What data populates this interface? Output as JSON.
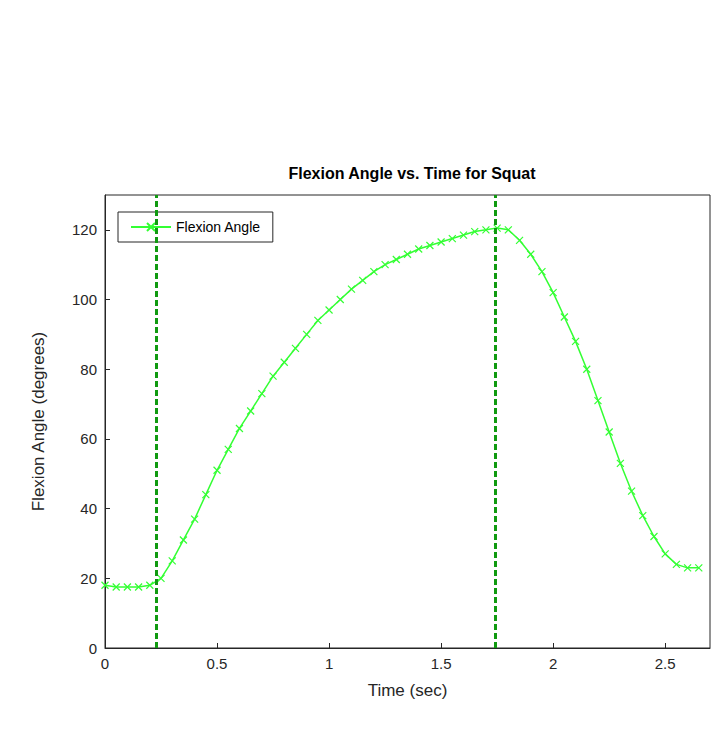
{
  "chart_data": {
    "type": "line",
    "title": "Flexion Angle vs. Time for Squat",
    "x_label": "Time (sec)",
    "y_label": "Flexion Angle (degrees)",
    "x": [
      0,
      0.05,
      0.1,
      0.15,
      0.2,
      0.25,
      0.3,
      0.35,
      0.4,
      0.45,
      0.5,
      0.55,
      0.6,
      0.65,
      0.7,
      0.75,
      0.8,
      0.85,
      0.9,
      0.95,
      1.0,
      1.05,
      1.1,
      1.15,
      1.2,
      1.25,
      1.3,
      1.35,
      1.4,
      1.45,
      1.5,
      1.55,
      1.6,
      1.65,
      1.7,
      1.75,
      1.8,
      1.85,
      1.9,
      1.95,
      2.0,
      2.05,
      2.1,
      2.15,
      2.2,
      2.25,
      2.3,
      2.35,
      2.4,
      2.45,
      2.5,
      2.55,
      2.6,
      2.65
    ],
    "series": [
      {
        "name": "Flexion Angle",
        "color": "#33ff33",
        "marker": "x",
        "line_style": "solid",
        "values": [
          18,
          17.5,
          17.5,
          17.5,
          18,
          20,
          25,
          31,
          37,
          44,
          51,
          57,
          63,
          68,
          73,
          78,
          82,
          86,
          90,
          94,
          97,
          100,
          103,
          105.5,
          108,
          110,
          111.5,
          113,
          114.5,
          115.5,
          116.5,
          117.5,
          118.5,
          119.5,
          120,
          120.5,
          120,
          117,
          113,
          108,
          102,
          95,
          88,
          80,
          71,
          62,
          53,
          45,
          38,
          32,
          27,
          24,
          23,
          23
        ]
      }
    ],
    "phase_markers": [
      0.23,
      1.74
    ],
    "xlim": [
      0,
      2.7
    ],
    "xticks": [
      0,
      0.5,
      1,
      1.5,
      2,
      2.5
    ],
    "ylim": [
      0,
      130
    ],
    "yticks": [
      0,
      20,
      40,
      60,
      80,
      100,
      120
    ],
    "grid": false,
    "legend": "upper left"
  }
}
